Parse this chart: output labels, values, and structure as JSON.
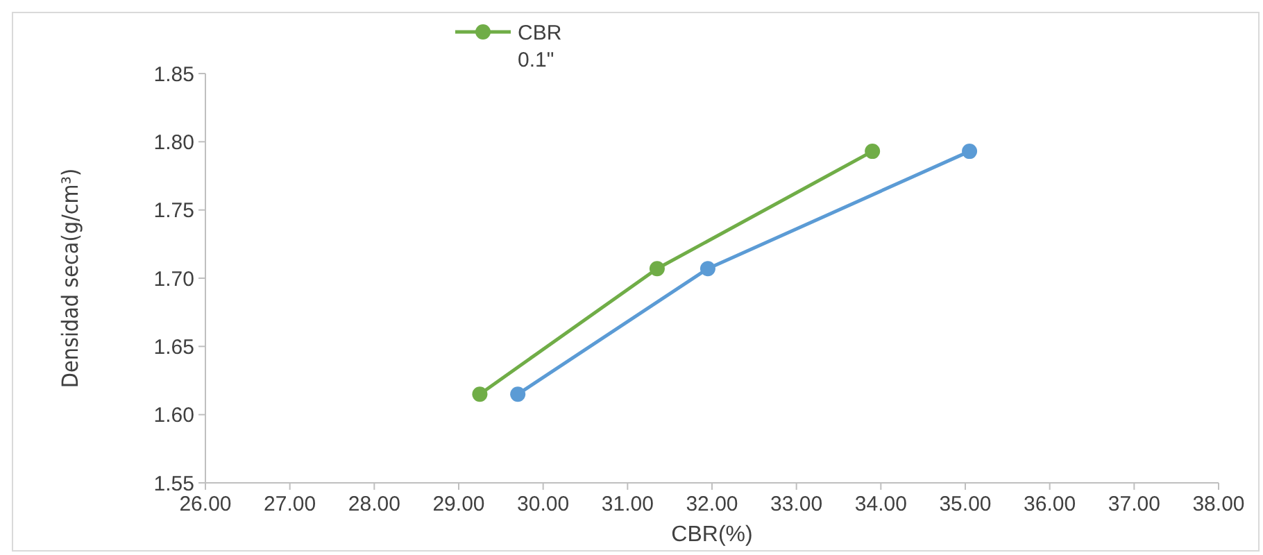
{
  "chart_data": {
    "type": "line",
    "xlabel": "CBR(%)",
    "ylabel": "Densidad seca(g/cm³)",
    "xlim": [
      26,
      38
    ],
    "xticks": [
      {
        "value": 26,
        "label": "26.00"
      },
      {
        "value": 27,
        "label": "27.00"
      },
      {
        "value": 28,
        "label": "28.00"
      },
      {
        "value": 29,
        "label": "29.00"
      },
      {
        "value": 30,
        "label": "30.00"
      },
      {
        "value": 31,
        "label": "31.00"
      },
      {
        "value": 32,
        "label": "32.00"
      },
      {
        "value": 33,
        "label": "33.00"
      },
      {
        "value": 34,
        "label": "34.00"
      },
      {
        "value": 35,
        "label": "35.00"
      },
      {
        "value": 36,
        "label": "36.00"
      },
      {
        "value": 37,
        "label": "37.00"
      },
      {
        "value": 38,
        "label": "38.00"
      }
    ],
    "ylim": [
      1.55,
      1.85
    ],
    "yticks": [
      {
        "value": 1.55,
        "label": "1.55"
      },
      {
        "value": 1.6,
        "label": "1.60"
      },
      {
        "value": 1.65,
        "label": "1.65"
      },
      {
        "value": 1.7,
        "label": "1.70"
      },
      {
        "value": 1.75,
        "label": "1.75"
      },
      {
        "value": 1.8,
        "label": "1.80"
      },
      {
        "value": 1.85,
        "label": "1.85"
      }
    ],
    "grid": false,
    "legend": "top",
    "marker": "circle",
    "line_style": "solid",
    "series": [
      {
        "name": "CBR 0.1\"",
        "color": "#70ad47",
        "x": [
          29.25,
          31.35,
          33.9
        ],
        "values": [
          1.615,
          1.707,
          1.793
        ]
      },
      {
        "color": "#5b9bd5",
        "x": [
          29.7,
          31.95,
          35.05
        ],
        "values": [
          1.615,
          1.707,
          1.793
        ]
      }
    ]
  }
}
